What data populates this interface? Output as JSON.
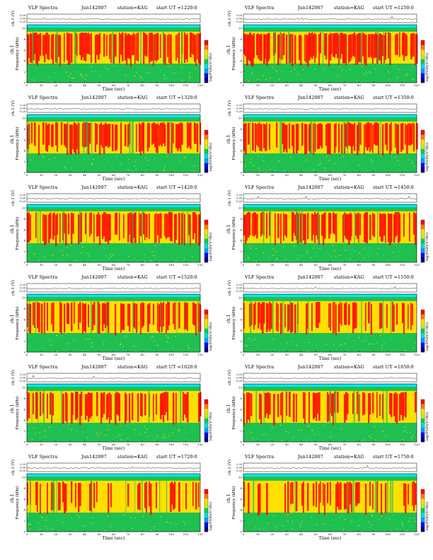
{
  "figure": {
    "panels": [
      {
        "title": "VLF Spectra",
        "date": "Jun142007",
        "station": "station=KAG",
        "start": "start  UT  =1220:0"
      },
      {
        "title": "VLF Spectra",
        "date": "Jun142007",
        "station": "station=KAG",
        "start": "start  UT  =1250:0"
      },
      {
        "title": "VLF Spectra",
        "date": "Jun142007",
        "station": "station=KAG",
        "start": "start  UT  =1320:0"
      },
      {
        "title": "VLF Spectra",
        "date": "Jun142007",
        "station": "station=KAG",
        "start": "start  UT  =1350:0"
      },
      {
        "title": "VLF Spectra",
        "date": "Jun142007",
        "station": "station=KAG",
        "start": "start  UT  =1420:0"
      },
      {
        "title": "VLF Spectra",
        "date": "Jun142007",
        "station": "station=KAG",
        "start": "start  UT  =1450:0"
      },
      {
        "title": "VLF Spectra",
        "date": "Jun142007",
        "station": "station=KAG",
        "start": "start  UT  =1520:0"
      },
      {
        "title": "VLF Spectra",
        "date": "Jun142007",
        "station": "station=KAG",
        "start": "start  UT  =1550:0"
      },
      {
        "title": "VLF Spectra",
        "date": "Jun142007",
        "station": "station=KAG",
        "start": "start  UT  =1620:0"
      },
      {
        "title": "VLF Spectra",
        "date": "Jun142007",
        "station": "station=KAG",
        "start": "start  UT  =1650:0"
      },
      {
        "title": "VLF Spectra",
        "date": "Jun142007",
        "station": "station=KAG",
        "start": "start  UT  =1720:0"
      },
      {
        "title": "VLF Spectra",
        "date": "Jun142007",
        "station": "station=KAG",
        "start": "start  UT  =1750:0"
      }
    ]
  },
  "labels": {
    "ch1_amp": "ch.1 (V)",
    "ch1_freq": "ch.1",
    "freq_axis": "Frequency (kHz)",
    "time_axis": "Time (sec)",
    "colorbar": "log(PSD)(V²/Hz)"
  },
  "chart_data": {
    "type": "heatmap",
    "panel_count": 12,
    "layout": "6 rows x 2 columns",
    "x_axis": {
      "label": "Time (sec)",
      "range": [
        0,
        120
      ],
      "ticks": [
        0,
        10,
        20,
        30,
        40,
        50,
        60,
        70,
        80,
        90,
        100,
        110,
        120
      ]
    },
    "y_axis": {
      "label": "Frequency (kHz)",
      "range": [
        0,
        10
      ],
      "ticks": [
        0,
        2,
        4,
        6,
        8,
        10
      ]
    },
    "amplitude_axis": {
      "label": "ch.1 (V)",
      "ticks": [
        "0.20",
        "0.00",
        "-0.20"
      ]
    },
    "colorbar": {
      "label": "log(PSD)(V²/Hz)",
      "colors": [
        "#000080",
        "#0000ff",
        "#00a0ff",
        "#00e0e0",
        "#00d050",
        "#c8f000",
        "#ffe000",
        "#ff8000",
        "#ff0000"
      ]
    },
    "colors": {
      "noise": "#20c050",
      "band": "#ff0000",
      "mid": "#ffe000",
      "cyan": "#00e8f0",
      "bg": "#ffffff"
    }
  }
}
